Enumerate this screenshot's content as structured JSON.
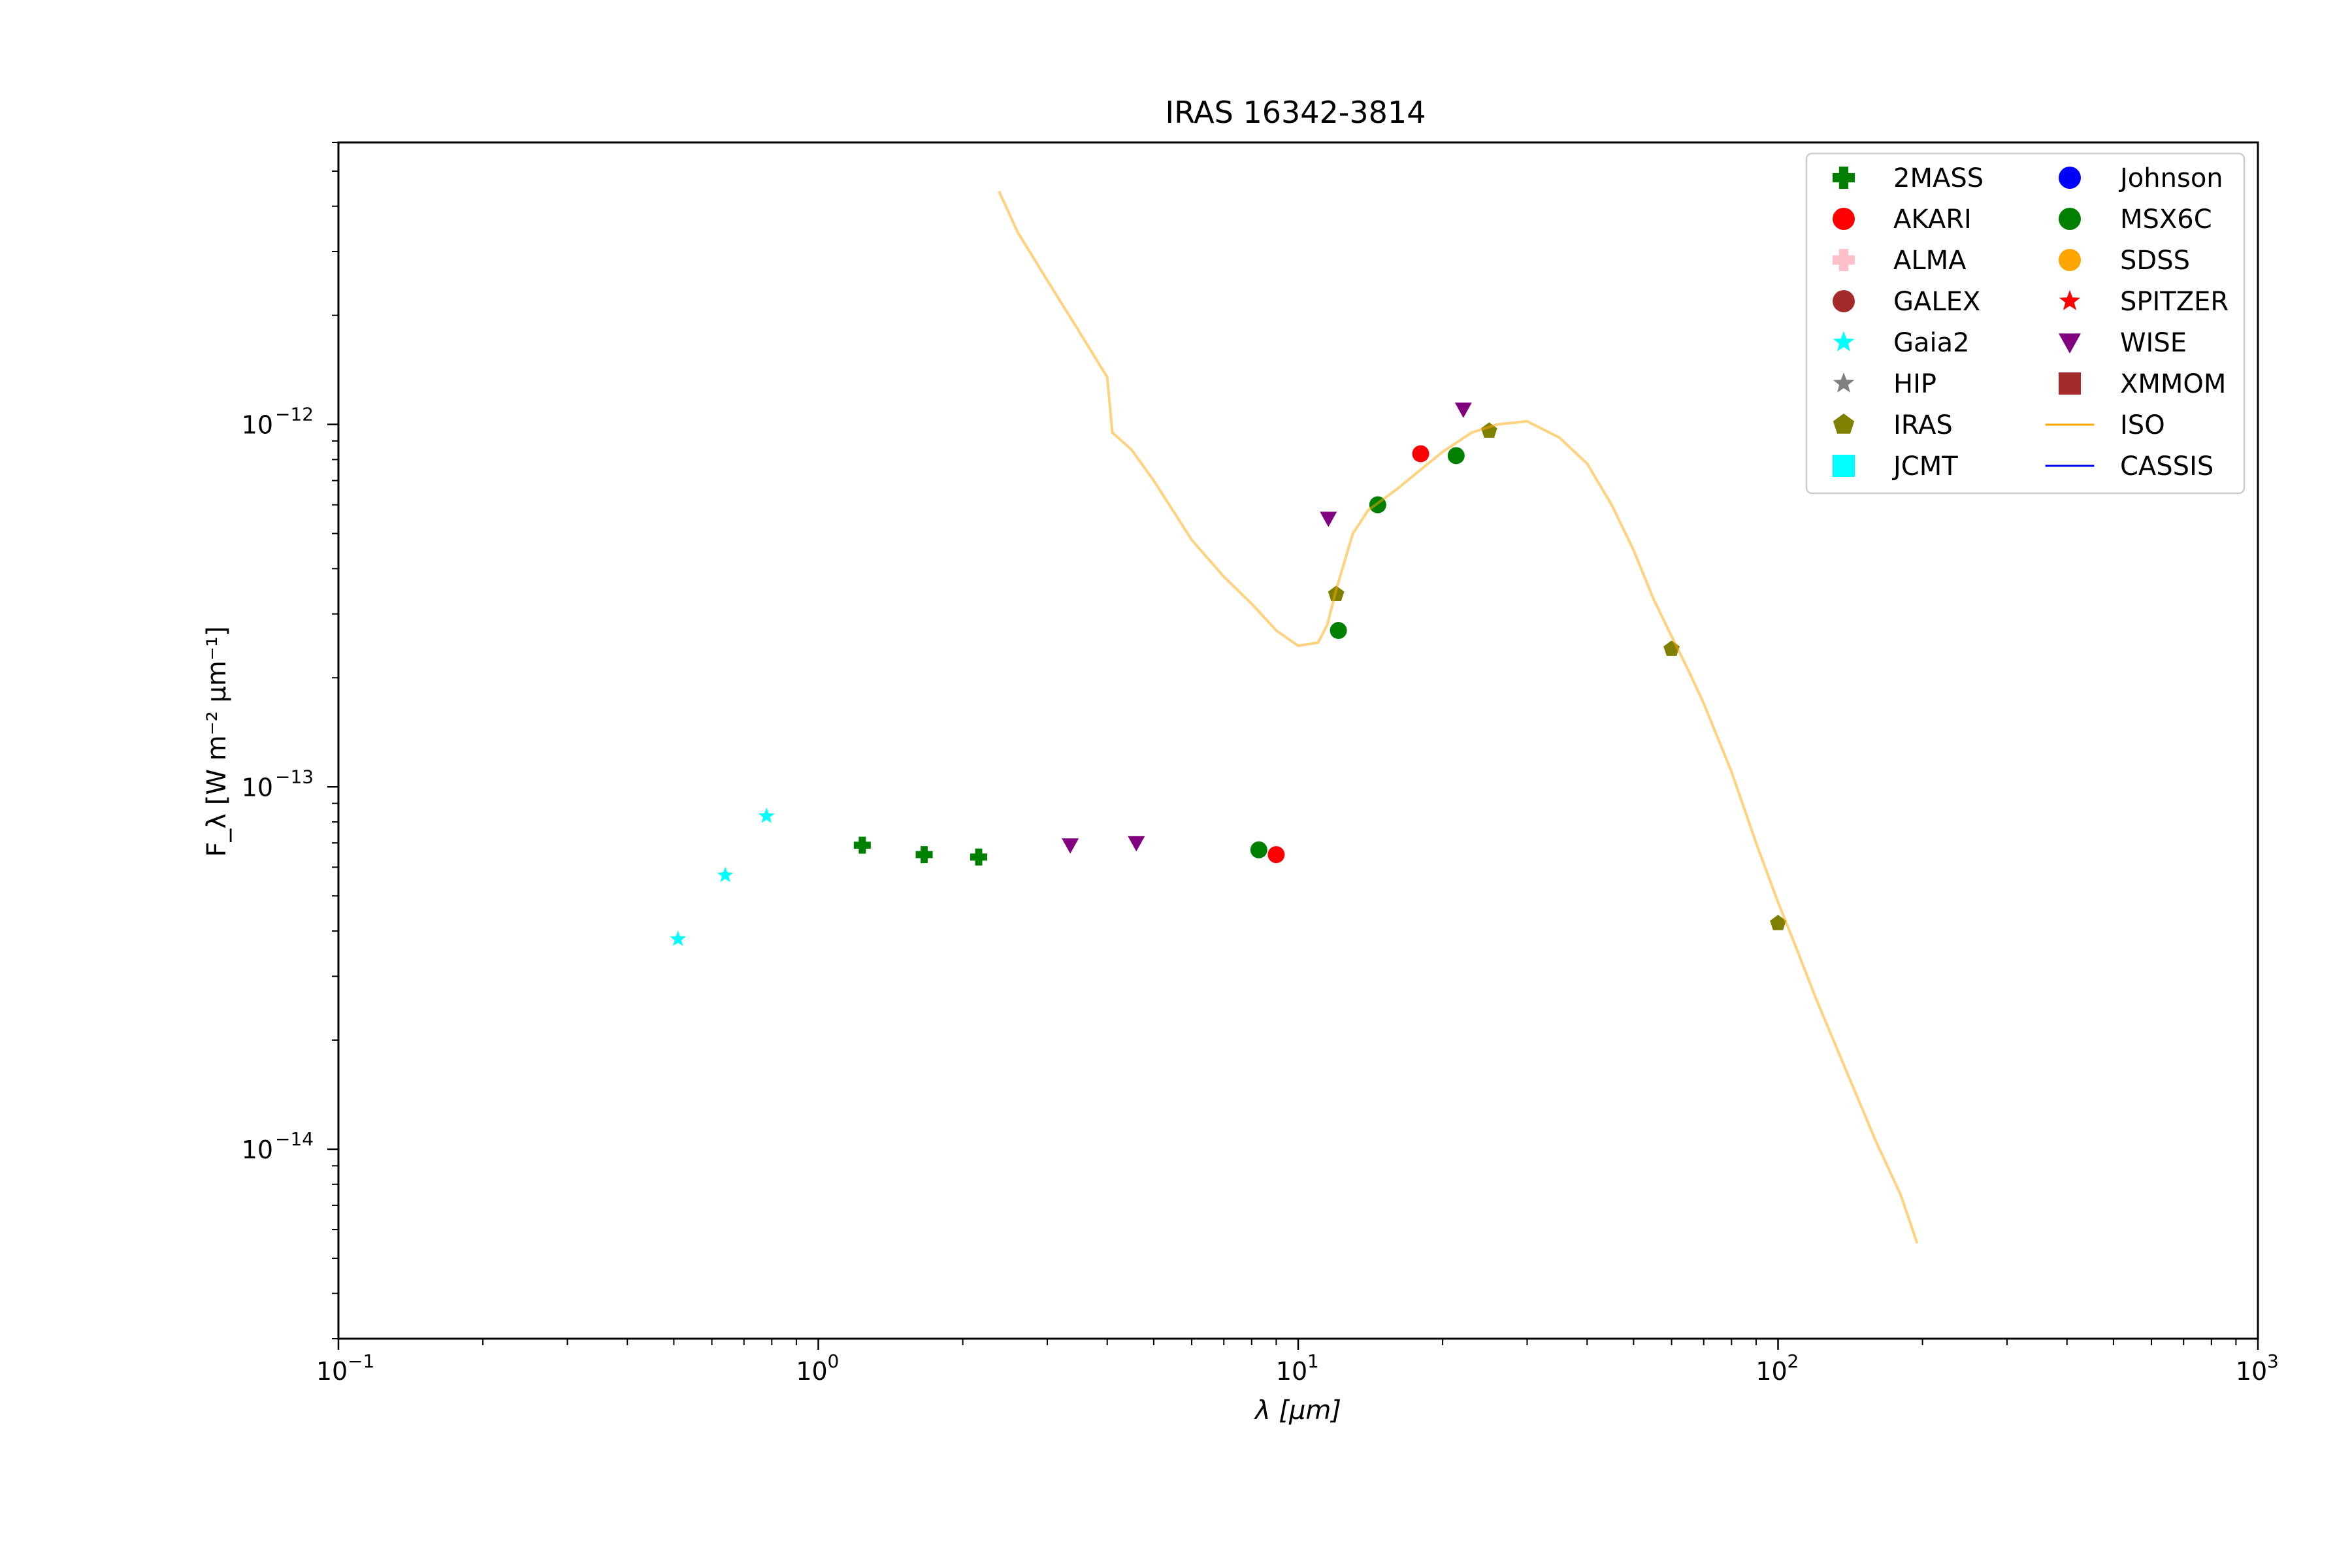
{
  "chart_data": {
    "type": "scatter",
    "title": "IRAS 16342-3814",
    "xlabel": "λ [μm]",
    "ylabel": "F_λ [W m⁻² μm⁻¹]",
    "xscale": "log",
    "yscale": "log",
    "xlim": [
      0.1,
      1000
    ],
    "ylim": [
      3e-15,
      6e-12
    ],
    "x_ticks": [
      {
        "value": 0.1,
        "base": "10",
        "exp": "−1"
      },
      {
        "value": 1,
        "base": "10",
        "exp": "0"
      },
      {
        "value": 10,
        "base": "10",
        "exp": "1"
      },
      {
        "value": 100,
        "base": "10",
        "exp": "2"
      },
      {
        "value": 1000,
        "base": "10",
        "exp": "3"
      }
    ],
    "y_ticks": [
      {
        "value": 1e-14,
        "base": "10",
        "exp": "−14"
      },
      {
        "value": 1e-13,
        "base": "10",
        "exp": "−13"
      },
      {
        "value": 1e-12,
        "base": "10",
        "exp": "−12"
      }
    ],
    "grid": false,
    "legend_position": "top-right",
    "legend": [
      {
        "name": "2MASS",
        "marker": "plus",
        "color": "#008000"
      },
      {
        "name": "AKARI",
        "marker": "circle",
        "color": "#ff0000"
      },
      {
        "name": "ALMA",
        "marker": "plus",
        "color": "#ffc0cb"
      },
      {
        "name": "GALEX",
        "marker": "circle",
        "color": "#a52a2a"
      },
      {
        "name": "Gaia2",
        "marker": "star",
        "color": "#00ffff"
      },
      {
        "name": "HIP",
        "marker": "star",
        "color": "#808080"
      },
      {
        "name": "IRAS",
        "marker": "pentagon",
        "color": "#808000"
      },
      {
        "name": "JCMT",
        "marker": "square",
        "color": "#00ffff"
      },
      {
        "name": "Johnson",
        "marker": "circle",
        "color": "#0000ff"
      },
      {
        "name": "MSX6C",
        "marker": "circle",
        "color": "#008000"
      },
      {
        "name": "SDSS",
        "marker": "circle",
        "color": "#ffa500"
      },
      {
        "name": "SPITZER",
        "marker": "star",
        "color": "#ff0000"
      },
      {
        "name": "WISE",
        "marker": "triangle-down",
        "color": "#800080"
      },
      {
        "name": "XMMOM",
        "marker": "square",
        "color": "#a52a2a"
      },
      {
        "name": "ISO",
        "marker": "line",
        "color": "#ffa500"
      },
      {
        "name": "CASSIS",
        "marker": "line",
        "color": "#0000ff"
      }
    ],
    "series": [
      {
        "name": "2MASS",
        "marker": "plus",
        "color": "#008000",
        "points": [
          [
            1.235,
            6.9e-14
          ],
          [
            1.662,
            6.5e-14
          ],
          [
            2.159,
            6.4e-14
          ]
        ]
      },
      {
        "name": "AKARI",
        "marker": "circle",
        "color": "#ff0000",
        "points": [
          [
            9.0,
            6.5e-14
          ],
          [
            18.0,
            8.3e-13
          ]
        ]
      },
      {
        "name": "Gaia2",
        "marker": "star",
        "color": "#00ffff",
        "points": [
          [
            0.51,
            3.8e-14
          ],
          [
            0.64,
            5.7e-14
          ],
          [
            0.78,
            8.3e-14
          ]
        ]
      },
      {
        "name": "IRAS",
        "marker": "pentagon",
        "color": "#808000",
        "points": [
          [
            12.0,
            3.4e-13
          ],
          [
            25.0,
            9.6e-13
          ],
          [
            60.0,
            2.4e-13
          ],
          [
            100.0,
            4.2e-14
          ]
        ]
      },
      {
        "name": "MSX6C",
        "marker": "circle",
        "color": "#008000",
        "points": [
          [
            8.28,
            6.7e-14
          ],
          [
            12.13,
            2.7e-13
          ],
          [
            14.65,
            6e-13
          ],
          [
            21.34,
            8.2e-13
          ]
        ]
      },
      {
        "name": "WISE",
        "marker": "triangle-down",
        "color": "#800080",
        "points": [
          [
            3.35,
            6.9e-14
          ],
          [
            4.6,
            7e-14
          ],
          [
            11.56,
            5.5e-13
          ],
          [
            22.09,
            1.1e-12
          ]
        ]
      },
      {
        "name": "ISO",
        "marker": "line",
        "color": "#ffa500",
        "points": [
          [
            2.38,
            4.4e-12
          ],
          [
            2.6,
            3.4e-12
          ],
          [
            3.0,
            2.5e-12
          ],
          [
            3.5,
            1.8e-12
          ],
          [
            4.0,
            1.35e-12
          ],
          [
            4.1,
            9.5e-13
          ],
          [
            4.5,
            8.5e-13
          ],
          [
            5.0,
            7e-13
          ],
          [
            6.0,
            4.8e-13
          ],
          [
            7.0,
            3.8e-13
          ],
          [
            8.0,
            3.2e-13
          ],
          [
            9.0,
            2.7e-13
          ],
          [
            10.0,
            2.45e-13
          ],
          [
            11.0,
            2.5e-13
          ],
          [
            11.5,
            2.8e-13
          ],
          [
            12.0,
            3.5e-13
          ],
          [
            13.0,
            5e-13
          ],
          [
            14.0,
            5.8e-13
          ],
          [
            16.0,
            6.6e-13
          ],
          [
            18.0,
            7.5e-13
          ],
          [
            20.0,
            8.4e-13
          ],
          [
            23.0,
            9.5e-13
          ],
          [
            26.0,
            1e-12
          ],
          [
            30.0,
            1.02e-12
          ],
          [
            35.0,
            9.2e-13
          ],
          [
            40.0,
            7.8e-13
          ],
          [
            45.0,
            6e-13
          ],
          [
            50.0,
            4.5e-13
          ],
          [
            55.0,
            3.3e-13
          ],
          [
            60.0,
            2.6e-13
          ],
          [
            65.0,
            2.1e-13
          ],
          [
            70.0,
            1.7e-13
          ],
          [
            80.0,
            1.1e-13
          ],
          [
            90.0,
            7e-14
          ],
          [
            100.0,
            4.8e-14
          ],
          [
            110.0,
            3.5e-14
          ],
          [
            120.0,
            2.6e-14
          ],
          [
            140.0,
            1.6e-14
          ],
          [
            160.0,
            1.05e-14
          ],
          [
            180.0,
            7.5e-15
          ],
          [
            195.0,
            5.5e-15
          ]
        ]
      }
    ]
  }
}
